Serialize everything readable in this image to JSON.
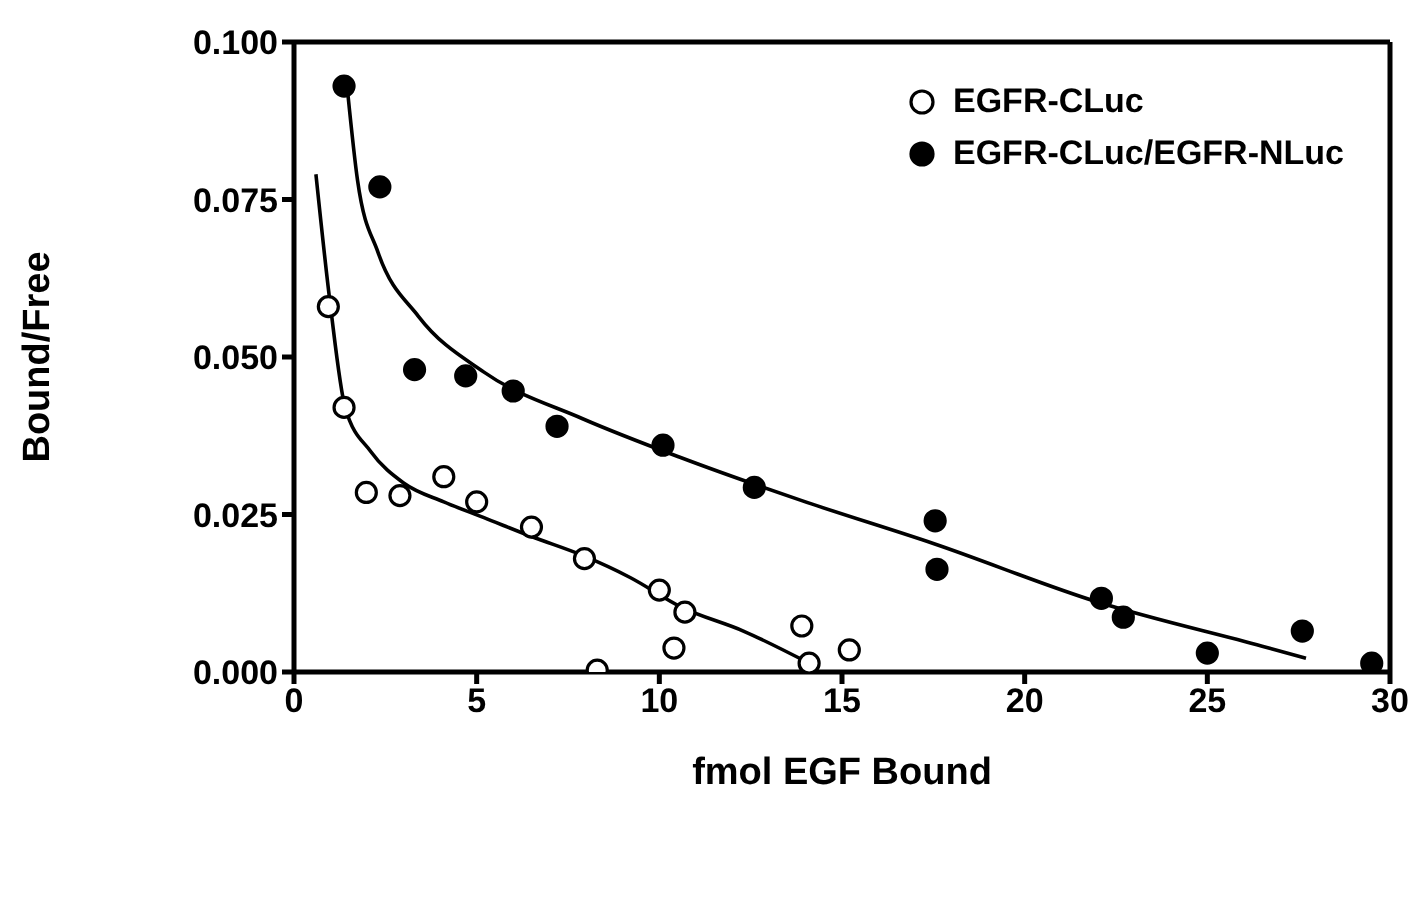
{
  "chart_data": {
    "type": "scatter",
    "xlabel": "fmol EGF Bound",
    "ylabel": "Bound/Free",
    "xlim": [
      0,
      30
    ],
    "xticks": [
      0,
      5,
      10,
      15,
      20,
      25,
      30
    ],
    "ylim": [
      0,
      0.1
    ],
    "yticks": [
      {
        "value": 0,
        "label": "0.000"
      },
      0.025,
      {
        "value": 0.05,
        "label": "0.050"
      },
      0.075,
      {
        "value": 0.1,
        "label": "0.100"
      }
    ],
    "grid": false,
    "legend": "top right",
    "marker": "circle",
    "series": [
      {
        "name": "EGFR-CLuc",
        "color": "#ffffff",
        "x": [
          0.94,
          1.37,
          1.98,
          2.9,
          4.1,
          5.0,
          6.5,
          7.95,
          10.0,
          10.7,
          10.4,
          8.3,
          13.9,
          14.1,
          15.2
        ],
        "values": [
          0.058,
          0.042,
          0.0285,
          0.028,
          0.031,
          0.027,
          0.023,
          0.018,
          0.013,
          0.0095,
          0.0038,
          0.0003,
          0.0073,
          0.0014,
          0.0035
        ]
      },
      {
        "name": "EGFR-CLuc/EGFR-NLuc",
        "color": "#000000",
        "x": [
          1.37,
          2.35,
          3.3,
          4.7,
          6.0,
          7.2,
          10.1,
          12.6,
          17.55,
          17.6,
          22.1,
          22.7,
          25.0,
          27.6,
          29.5
        ],
        "values": [
          0.093,
          0.077,
          0.048,
          0.047,
          0.0446,
          0.039,
          0.036,
          0.0293,
          0.024,
          0.0163,
          0.0117,
          0.0087,
          0.003,
          0.0065,
          0.0014
        ]
      },
      {
        "type": "line",
        "color": "#000000",
        "marker": "none",
        "line_style": "solid",
        "x": [
          0.6,
          1.0,
          1.4,
          2.1,
          3.0,
          4.1,
          5.2,
          6.5,
          7.9,
          9.2,
          10.6,
          12.3,
          14.1
        ],
        "values": [
          0.079,
          0.058,
          0.042,
          0.035,
          0.03,
          0.027,
          0.0245,
          0.0215,
          0.0185,
          0.015,
          0.0103,
          0.0065,
          0.0014
        ]
      },
      {
        "type": "line",
        "color": "#000000",
        "marker": "none",
        "line_style": "solid",
        "x": [
          1.47,
          1.74,
          2.3,
          3.4,
          5.2,
          7.9,
          10.6,
          13.9,
          17.5,
          22.0,
          26.5,
          27.7
        ],
        "values": [
          0.092,
          0.078,
          0.0666,
          0.0565,
          0.0476,
          0.0402,
          0.034,
          0.0272,
          0.0204,
          0.0111,
          0.0041,
          0.0022
        ]
      }
    ]
  }
}
